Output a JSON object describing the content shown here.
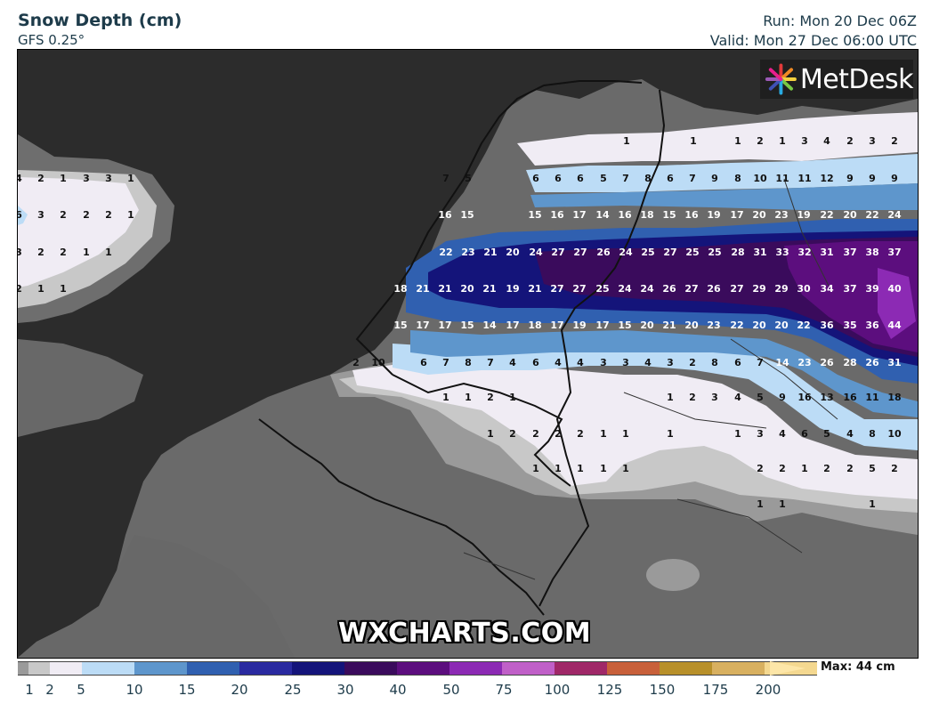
{
  "header": {
    "title": "Snow Depth (cm)",
    "model": "GFS 0.25°",
    "run": "Run: Mon 20 Dec 06Z",
    "valid": "Valid: Mon 27 Dec 06:00 UTC"
  },
  "logo": {
    "text": "MetDesk",
    "icon": "starburst-logo-icon"
  },
  "watermark": "WXCHARTS.COM",
  "legend": {
    "max_label": "Max: 44 cm",
    "tick_labels": [
      "1",
      "2",
      "5",
      "10",
      "15",
      "20",
      "25",
      "30",
      "40",
      "50",
      "75",
      "100",
      "125",
      "150",
      "175",
      "200"
    ],
    "colors": [
      "#9a9a9a",
      "#c8c8c8",
      "#f0ecf4",
      "#bcdcf6",
      "#5e96cc",
      "#3060b0",
      "#2a2aa0",
      "#14147a",
      "#3a0b5c",
      "#5c0e7e",
      "#8c2ab4",
      "#c060c8",
      "#a02868",
      "#c8603a",
      "#b8902a",
      "#d8b060",
      "#f4d890",
      "#fde6a8"
    ]
  },
  "map_values": {
    "rows": [
      {
        "y": 157,
        "items": [
          [
            703,
            "1"
          ],
          [
            778,
            "1"
          ],
          [
            828,
            "1"
          ],
          [
            853,
            "2"
          ],
          [
            878,
            "1"
          ],
          [
            903,
            "3"
          ],
          [
            928,
            "4"
          ],
          [
            954,
            "2"
          ],
          [
            979,
            "3"
          ],
          [
            1004,
            "2"
          ]
        ]
      },
      {
        "y": 199,
        "items": [
          [
            20,
            "4"
          ],
          [
            45,
            "2"
          ],
          [
            70,
            "1"
          ],
          [
            96,
            "3"
          ],
          [
            121,
            "3"
          ],
          [
            146,
            "1"
          ],
          [
            500,
            "7"
          ],
          [
            525,
            "5"
          ],
          [
            601,
            "6"
          ],
          [
            626,
            "6"
          ],
          [
            651,
            "6"
          ],
          [
            677,
            "5"
          ],
          [
            702,
            "7"
          ],
          [
            727,
            "8"
          ],
          [
            752,
            "6"
          ],
          [
            777,
            "7"
          ],
          [
            802,
            "9"
          ],
          [
            828,
            "8"
          ],
          [
            853,
            "10"
          ],
          [
            878,
            "11"
          ],
          [
            903,
            "11"
          ],
          [
            928,
            "12"
          ],
          [
            954,
            "9"
          ],
          [
            979,
            "9"
          ],
          [
            1004,
            "9"
          ]
        ]
      },
      {
        "y": 240,
        "items": [
          [
            20,
            "6"
          ],
          [
            45,
            "3"
          ],
          [
            70,
            "2"
          ],
          [
            96,
            "2"
          ],
          [
            121,
            "2"
          ],
          [
            146,
            "1"
          ],
          [
            499,
            "16"
          ],
          [
            524,
            "15"
          ],
          [
            600,
            "15"
          ],
          [
            625,
            "16"
          ],
          [
            650,
            "17"
          ],
          [
            676,
            "14"
          ],
          [
            701,
            "16"
          ],
          [
            726,
            "18"
          ],
          [
            751,
            "15"
          ],
          [
            776,
            "16"
          ],
          [
            801,
            "19"
          ],
          [
            827,
            "17"
          ],
          [
            852,
            "20"
          ],
          [
            877,
            "23"
          ],
          [
            902,
            "19"
          ],
          [
            928,
            "22"
          ],
          [
            954,
            "20"
          ],
          [
            979,
            "22"
          ],
          [
            1004,
            "24"
          ]
        ]
      },
      {
        "y": 282,
        "items": [
          [
            20,
            "3"
          ],
          [
            45,
            "2"
          ],
          [
            70,
            "2"
          ],
          [
            96,
            "1"
          ],
          [
            121,
            "1"
          ],
          [
            500,
            "22"
          ],
          [
            525,
            "23"
          ],
          [
            550,
            "21"
          ],
          [
            575,
            "20"
          ],
          [
            601,
            "24"
          ],
          [
            626,
            "27"
          ],
          [
            651,
            "27"
          ],
          [
            677,
            "26"
          ],
          [
            702,
            "24"
          ],
          [
            727,
            "25"
          ],
          [
            752,
            "27"
          ],
          [
            777,
            "25"
          ],
          [
            802,
            "25"
          ],
          [
            828,
            "28"
          ],
          [
            853,
            "31"
          ],
          [
            878,
            "33"
          ],
          [
            903,
            "32"
          ],
          [
            928,
            "31"
          ],
          [
            954,
            "37"
          ],
          [
            979,
            "38"
          ],
          [
            1004,
            "37"
          ]
        ]
      },
      {
        "y": 323,
        "items": [
          [
            20,
            "2"
          ],
          [
            45,
            "1"
          ],
          [
            70,
            "1"
          ],
          [
            449,
            "18"
          ],
          [
            474,
            "21"
          ],
          [
            499,
            "21"
          ],
          [
            524,
            "20"
          ],
          [
            549,
            "21"
          ],
          [
            575,
            "19"
          ],
          [
            600,
            "21"
          ],
          [
            625,
            "27"
          ],
          [
            650,
            "27"
          ],
          [
            676,
            "25"
          ],
          [
            701,
            "24"
          ],
          [
            726,
            "24"
          ],
          [
            751,
            "26"
          ],
          [
            776,
            "27"
          ],
          [
            801,
            "26"
          ],
          [
            827,
            "27"
          ],
          [
            852,
            "29"
          ],
          [
            877,
            "29"
          ],
          [
            902,
            "30"
          ],
          [
            928,
            "34"
          ],
          [
            954,
            "37"
          ],
          [
            979,
            "39"
          ],
          [
            1004,
            "40"
          ]
        ]
      },
      {
        "y": 364,
        "items": [
          [
            449,
            "15"
          ],
          [
            474,
            "17"
          ],
          [
            499,
            "17"
          ],
          [
            524,
            "15"
          ],
          [
            549,
            "14"
          ],
          [
            575,
            "17"
          ],
          [
            600,
            "18"
          ],
          [
            625,
            "17"
          ],
          [
            650,
            "19"
          ],
          [
            676,
            "17"
          ],
          [
            701,
            "15"
          ],
          [
            726,
            "20"
          ],
          [
            751,
            "21"
          ],
          [
            776,
            "20"
          ],
          [
            801,
            "23"
          ],
          [
            827,
            "22"
          ],
          [
            852,
            "20"
          ],
          [
            877,
            "20"
          ],
          [
            902,
            "22"
          ],
          [
            928,
            "36"
          ],
          [
            954,
            "35"
          ],
          [
            979,
            "36"
          ],
          [
            1004,
            "44"
          ]
        ]
      },
      {
        "y": 406,
        "items": [
          [
            399,
            "2"
          ],
          [
            424,
            "10"
          ],
          [
            475,
            "6"
          ],
          [
            500,
            "7"
          ],
          [
            525,
            "8"
          ],
          [
            550,
            "7"
          ],
          [
            575,
            "4"
          ],
          [
            601,
            "6"
          ],
          [
            626,
            "4"
          ],
          [
            651,
            "4"
          ],
          [
            677,
            "3"
          ],
          [
            702,
            "3"
          ],
          [
            727,
            "4"
          ],
          [
            752,
            "3"
          ],
          [
            777,
            "2"
          ],
          [
            802,
            "8"
          ],
          [
            828,
            "6"
          ],
          [
            853,
            "7"
          ],
          [
            878,
            "14"
          ],
          [
            903,
            "23"
          ],
          [
            928,
            "26"
          ],
          [
            954,
            "28"
          ],
          [
            979,
            "26"
          ],
          [
            1004,
            "31"
          ]
        ]
      },
      {
        "y": 445,
        "items": [
          [
            500,
            "1"
          ],
          [
            525,
            "1"
          ],
          [
            550,
            "2"
          ],
          [
            575,
            "1"
          ],
          [
            752,
            "1"
          ],
          [
            777,
            "2"
          ],
          [
            802,
            "3"
          ],
          [
            828,
            "4"
          ],
          [
            853,
            "5"
          ],
          [
            878,
            "9"
          ],
          [
            903,
            "16"
          ],
          [
            928,
            "13"
          ],
          [
            954,
            "16"
          ],
          [
            979,
            "11"
          ],
          [
            1004,
            "18"
          ]
        ]
      },
      {
        "y": 486,
        "items": [
          [
            550,
            "1"
          ],
          [
            575,
            "2"
          ],
          [
            601,
            "2"
          ],
          [
            626,
            "2"
          ],
          [
            651,
            "2"
          ],
          [
            677,
            "1"
          ],
          [
            702,
            "1"
          ],
          [
            752,
            "1"
          ],
          [
            828,
            "1"
          ],
          [
            853,
            "3"
          ],
          [
            878,
            "4"
          ],
          [
            903,
            "6"
          ],
          [
            928,
            "5"
          ],
          [
            954,
            "4"
          ],
          [
            979,
            "8"
          ],
          [
            1004,
            "10"
          ]
        ]
      },
      {
        "y": 525,
        "items": [
          [
            601,
            "1"
          ],
          [
            626,
            "1"
          ],
          [
            651,
            "1"
          ],
          [
            677,
            "1"
          ],
          [
            702,
            "1"
          ],
          [
            853,
            "2"
          ],
          [
            878,
            "2"
          ],
          [
            903,
            "1"
          ],
          [
            928,
            "2"
          ],
          [
            954,
            "2"
          ],
          [
            979,
            "5"
          ],
          [
            1004,
            "2"
          ]
        ]
      },
      {
        "y": 565,
        "items": [
          [
            853,
            "1"
          ],
          [
            878,
            "1"
          ],
          [
            979,
            "1"
          ]
        ]
      }
    ]
  }
}
